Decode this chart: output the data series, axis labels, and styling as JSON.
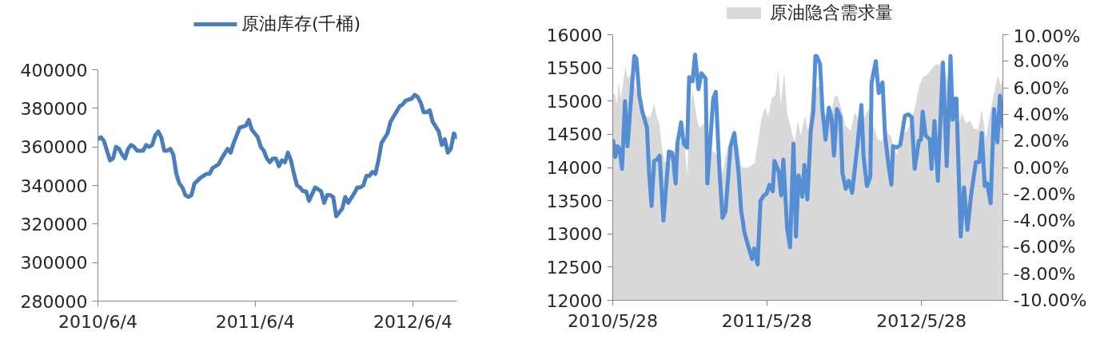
{
  "chart_data": [
    {
      "type": "line",
      "legend": "top",
      "xlim": [
        "2010-06-04",
        "2012-09-14"
      ],
      "xticks": [
        {
          "value": "2010-06-04",
          "label": "2010/6/4"
        },
        {
          "value": "2011-06-04",
          "label": "2011/6/4"
        },
        {
          "value": "2012-06-04",
          "label": "2012/6/4"
        }
      ],
      "ylim": [
        280000,
        400000
      ],
      "yticks": [
        280000,
        300000,
        320000,
        340000,
        360000,
        380000,
        400000
      ],
      "series": [
        {
          "name": "原油库存(千桶)",
          "color": "#4a7ebb",
          "x": [
            "2010-06-04",
            "2010-06-11",
            "2010-06-18",
            "2010-07-02",
            "2010-07-09",
            "2010-07-16",
            "2010-07-23",
            "2010-07-30",
            "2010-08-06",
            "2010-08-13",
            "2010-08-20",
            "2010-08-27",
            "2010-09-03",
            "2010-09-10",
            "2010-09-17",
            "2010-09-24",
            "2010-10-01",
            "2010-10-08",
            "2010-10-15",
            "2010-10-22",
            "2010-10-29",
            "2010-11-05",
            "2010-11-12",
            "2010-11-19",
            "2010-11-26",
            "2010-12-03",
            "2010-12-10",
            "2010-12-17",
            "2010-12-24",
            "2010-12-31",
            "2011-01-07",
            "2011-01-14",
            "2011-01-28",
            "2011-02-04",
            "2011-02-11",
            "2011-02-18",
            "2011-02-25",
            "2011-03-11",
            "2011-03-18",
            "2011-04-01",
            "2011-04-08",
            "2011-04-15",
            "2011-04-22",
            "2011-04-29",
            "2011-05-13",
            "2011-05-20",
            "2011-05-27",
            "2011-06-10",
            "2011-06-17",
            "2011-06-24",
            "2011-07-01",
            "2011-07-08",
            "2011-07-15",
            "2011-07-22",
            "2011-07-29",
            "2011-08-05",
            "2011-08-12",
            "2011-08-19",
            "2011-08-26",
            "2011-09-02",
            "2011-09-09",
            "2011-09-16",
            "2011-09-23",
            "2011-09-30",
            "2011-10-07",
            "2011-10-21",
            "2011-10-28",
            "2011-11-04",
            "2011-11-11",
            "2011-11-18",
            "2011-11-25",
            "2011-12-02",
            "2011-12-09",
            "2011-12-23",
            "2011-12-30",
            "2012-01-06",
            "2012-01-20",
            "2012-01-27",
            "2012-02-03",
            "2012-02-10",
            "2012-02-17",
            "2012-02-24",
            "2012-03-02",
            "2012-03-09",
            "2012-03-16",
            "2012-03-23",
            "2012-04-06",
            "2012-04-13",
            "2012-05-04",
            "2012-05-11",
            "2012-05-18",
            "2012-06-01",
            "2012-06-08",
            "2012-06-15",
            "2012-06-22",
            "2012-06-29",
            "2012-07-06",
            "2012-07-13",
            "2012-07-20",
            "2012-08-03",
            "2012-08-10",
            "2012-08-17",
            "2012-08-24",
            "2012-08-31",
            "2012-09-07",
            "2012-09-14"
          ],
          "values": [
            364000,
            365000,
            363000,
            353000,
            354000,
            360000,
            359000,
            356000,
            354000,
            359000,
            361000,
            360000,
            358000,
            358000,
            358000,
            361000,
            360000,
            361000,
            366000,
            368000,
            365000,
            358000,
            358000,
            359000,
            356000,
            346000,
            341000,
            339000,
            335000,
            334000,
            335000,
            341000,
            344000,
            345000,
            346000,
            346000,
            349000,
            351000,
            354000,
            359000,
            357000,
            362000,
            366000,
            370000,
            371000,
            374000,
            369000,
            365000,
            360000,
            358000,
            354000,
            352000,
            354000,
            354000,
            350000,
            353000,
            352000,
            357000,
            353000,
            346000,
            340000,
            339000,
            337000,
            337000,
            332000,
            339000,
            338000,
            337000,
            331000,
            335000,
            335000,
            334000,
            324000,
            328000,
            334000,
            331000,
            336000,
            339000,
            339000,
            340000,
            345000,
            345000,
            347000,
            346000,
            353000,
            362000,
            367000,
            373000,
            381000,
            382000,
            384000,
            385000,
            387000,
            386000,
            383000,
            378000,
            378000,
            379000,
            373000,
            368000,
            361000,
            364000,
            357000,
            359000,
            367000,
            365000
          ]
        }
      ]
    },
    {
      "type": "area",
      "legend": "top",
      "xlim": [
        "2010-05-28",
        "2012-12-07"
      ],
      "xticks": [
        {
          "value": "2010-05-28",
          "label": "2010/5/28"
        },
        {
          "value": "2011-05-28",
          "label": "2011/5/28"
        },
        {
          "value": "2012-05-28",
          "label": "2012/5/28"
        }
      ],
      "ylim": [
        12000,
        16000
      ],
      "yticks": [
        12000,
        12500,
        13000,
        13500,
        14000,
        14500,
        15000,
        15500,
        16000
      ],
      "y2lim": [
        -10,
        10
      ],
      "y2ticks": [
        {
          "value": -10,
          "label": "-10.00%"
        },
        {
          "value": -8,
          "label": "-8.00%"
        },
        {
          "value": -6,
          "label": "-6.00%"
        },
        {
          "value": -4,
          "label": "-4.00%"
        },
        {
          "value": -2,
          "label": "-2.00%"
        },
        {
          "value": 0,
          "label": "0.00%"
        },
        {
          "value": 2,
          "label": "2.00%"
        },
        {
          "value": 4,
          "label": "4.00%"
        },
        {
          "value": 6,
          "label": "6.00%"
        },
        {
          "value": 8,
          "label": "8.00%"
        },
        {
          "value": 10,
          "label": "10.00%"
        }
      ],
      "series": [
        {
          "name": "原油隐含需求量",
          "color": "#d9d9d9",
          "x": [
            "2010-05-28",
            "2010-06-02",
            "2010-06-07",
            "2010-06-11",
            "2010-06-16",
            "2010-06-27",
            "2010-07-02",
            "2010-07-08",
            "2010-07-24",
            "2010-08-03",
            "2010-08-12",
            "2010-08-25",
            "2010-09-03",
            "2010-09-10",
            "2010-09-16",
            "2010-09-22",
            "2010-09-29",
            "2010-10-08",
            "2010-10-18",
            "2010-10-27",
            "2010-11-06",
            "2010-11-15",
            "2010-11-20",
            "2010-11-28",
            "2010-12-04",
            "2010-12-14",
            "2010-12-20",
            "2010-12-29",
            "2011-01-06",
            "2011-01-14",
            "2011-01-24",
            "2011-02-02",
            "2011-02-12",
            "2011-02-24",
            "2011-03-09",
            "2011-03-22",
            "2011-03-28",
            "2011-04-03",
            "2011-04-16",
            "2011-04-29",
            "2011-05-08",
            "2011-05-15",
            "2011-05-24",
            "2011-05-31",
            "2011-06-09",
            "2011-06-17",
            "2011-06-24",
            "2011-06-30",
            "2011-07-08",
            "2011-07-15",
            "2011-07-27",
            "2011-08-02",
            "2011-08-10",
            "2011-08-16",
            "2011-08-26",
            "2011-09-03",
            "2011-09-12",
            "2011-09-28",
            "2011-10-07",
            "2011-10-17",
            "2011-10-26",
            "2011-11-04",
            "2011-11-11",
            "2011-11-21",
            "2011-11-30",
            "2011-12-13",
            "2011-12-22",
            "2012-01-01",
            "2012-01-14",
            "2012-01-23",
            "2012-02-05",
            "2012-02-14",
            "2012-02-24",
            "2012-03-04",
            "2012-03-17",
            "2012-03-30",
            "2012-04-11",
            "2012-04-24",
            "2012-05-03",
            "2012-05-13",
            "2012-05-23",
            "2012-06-01",
            "2012-06-10",
            "2012-06-20",
            "2012-06-30",
            "2012-07-09",
            "2012-07-18",
            "2012-08-03",
            "2012-08-13",
            "2012-08-22",
            "2012-09-01",
            "2012-09-10",
            "2012-09-20",
            "2012-09-29",
            "2012-10-09",
            "2012-10-18",
            "2012-10-28",
            "2012-11-06",
            "2012-11-16",
            "2012-11-25",
            "2012-12-02",
            "2012-12-07"
          ],
          "values": [
            15100,
            15110,
            14950,
            15310,
            15030,
            15530,
            15350,
            15390,
            15150,
            14830,
            14790,
            14750,
            14960,
            14750,
            14650,
            14270,
            14070,
            14150,
            13910,
            14350,
            14390,
            14310,
            13870,
            14950,
            15150,
            14710,
            14590,
            14670,
            14470,
            14270,
            14230,
            14150,
            13910,
            14310,
            14390,
            14310,
            14030,
            13990,
            14010,
            14070,
            14430,
            14730,
            14910,
            14770,
            15050,
            15090,
            15490,
            14950,
            15450,
            14830,
            14510,
            14390,
            14710,
            14470,
            14770,
            14550,
            15150,
            15230,
            14630,
            14870,
            14750,
            15070,
            15090,
            14870,
            14630,
            14550,
            14830,
            14710,
            14750,
            14870,
            14630,
            14430,
            14390,
            14550,
            14470,
            14190,
            14510,
            14550,
            14670,
            14910,
            15230,
            15370,
            15390,
            15470,
            15550,
            15550,
            15630,
            15110,
            15070,
            14590,
            14830,
            14670,
            14710,
            14590,
            14570,
            14870,
            14430,
            14790,
            15110,
            15390,
            15230,
            15350
          ]
        },
        {
          "type": "line",
          "axis": "y2",
          "color": "#558ed5",
          "x": [
            "2010-05-29",
            "2010-06-03",
            "2010-06-08",
            "2010-06-13",
            "2010-06-19",
            "2010-06-26",
            "2010-07-02",
            "2010-07-08",
            "2010-07-18",
            "2010-07-23",
            "2010-07-30",
            "2010-08-06",
            "2010-08-17",
            "2010-08-22",
            "2010-08-28",
            "2010-09-03",
            "2010-09-10",
            "2010-09-16",
            "2010-09-25",
            "2010-10-08",
            "2010-10-16",
            "2010-10-24",
            "2010-10-28",
            "2010-11-06",
            "2010-11-12",
            "2010-11-20",
            "2010-11-25",
            "2010-12-03",
            "2010-12-09",
            "2010-12-17",
            "2010-12-24",
            "2011-01-03",
            "2011-01-07",
            "2011-01-21",
            "2011-01-27",
            "2011-02-05",
            "2011-02-12",
            "2011-02-19",
            "2011-03-03",
            "2011-03-12",
            "2011-03-22",
            "2011-03-28",
            "2011-04-05",
            "2011-04-11",
            "2011-04-23",
            "2011-04-28",
            "2011-05-06",
            "2011-05-13",
            "2011-05-21",
            "2011-05-27",
            "2011-06-03",
            "2011-06-11",
            "2011-06-15",
            "2011-06-25",
            "2011-07-01",
            "2011-07-06",
            "2011-07-15",
            "2011-07-22",
            "2011-07-30",
            "2011-08-05",
            "2011-08-11",
            "2011-08-20",
            "2011-08-25",
            "2011-09-01",
            "2011-09-09",
            "2011-09-15",
            "2011-09-20",
            "2011-09-23",
            "2011-10-01",
            "2011-10-07",
            "2011-10-14",
            "2011-10-22",
            "2011-10-28",
            "2011-11-03",
            "2011-11-10",
            "2011-11-18",
            "2011-11-23",
            "2011-12-01",
            "2011-12-08",
            "2011-12-16",
            "2011-12-29",
            "2012-01-07",
            "2012-01-12",
            "2012-01-20",
            "2012-01-28",
            "2012-01-31",
            "2012-02-10",
            "2012-02-17",
            "2012-02-26",
            "2012-03-03",
            "2012-03-11",
            "2012-03-18",
            "2012-03-22",
            "2012-03-30",
            "2012-04-08",
            "2012-04-19",
            "2012-04-27",
            "2012-05-05",
            "2012-05-12",
            "2012-05-22",
            "2012-05-27",
            "2012-05-31",
            "2012-06-07",
            "2012-06-17",
            "2012-06-21",
            "2012-06-28",
            "2012-07-06",
            "2012-07-18",
            "2012-07-27",
            "2012-08-05",
            "2012-08-10",
            "2012-08-13",
            "2012-08-16",
            "2012-08-19",
            "2012-08-29",
            "2012-09-06",
            "2012-09-14",
            "2012-09-23",
            "2012-10-04",
            "2012-10-12",
            "2012-10-18",
            "2012-10-25",
            "2012-10-31",
            "2012-11-08",
            "2012-11-16",
            "2012-11-24",
            "2012-11-30",
            "2012-12-07"
          ],
          "values": [
            2.0,
            0.8,
            1.6,
            1.4,
            -0.1,
            5.0,
            1.6,
            4.2,
            8.4,
            8.2,
            5.4,
            4.2,
            3.0,
            -0.4,
            -2.9,
            0.5,
            0.6,
            0.9,
            -4.0,
            1.2,
            1.1,
            -1.2,
            1.8,
            3.4,
            1.8,
            1.5,
            6.8,
            6.5,
            8.5,
            5.9,
            7.1,
            6.7,
            -1.2,
            5.2,
            5.7,
            -0.4,
            -3.8,
            -3.3,
            1.6,
            2.6,
            -0.4,
            -3.2,
            -4.9,
            -5.6,
            -6.9,
            -6.1,
            -7.3,
            -2.5,
            -2.1,
            -2.0,
            -1.3,
            -1.8,
            0.5,
            -0.3,
            -2.1,
            0.6,
            -4.6,
            -6.0,
            1.8,
            -5.2,
            -0.6,
            -2.2,
            0.2,
            -2.4,
            2.8,
            4.2,
            8.4,
            8.4,
            7.8,
            4.2,
            2.1,
            4.5,
            3.8,
            0.9,
            4.4,
            3.8,
            -0.4,
            -1.6,
            -1.0,
            -1.9,
            1.8,
            4.7,
            0.8,
            -1.4,
            -0.7,
            6.4,
            8.0,
            5.6,
            6.4,
            2.4,
            0.2,
            -1.3,
            1.6,
            1.5,
            1.7,
            3.9,
            4.0,
            3.8,
            -0.1,
            2.0,
            2.1,
            4.2,
            2.4,
            2.1,
            -0.1,
            3.5,
            -1.0,
            7.9,
            0.1,
            8.4,
            3.6,
            5.2,
            3.8,
            5.2,
            -5.2,
            -1.5,
            -4.7,
            -2.0,
            0.4,
            0.4,
            2.6,
            -1.4,
            -1.2,
            -2.7,
            4.4,
            1.9,
            5.4,
            3.1
          ]
        }
      ]
    }
  ]
}
